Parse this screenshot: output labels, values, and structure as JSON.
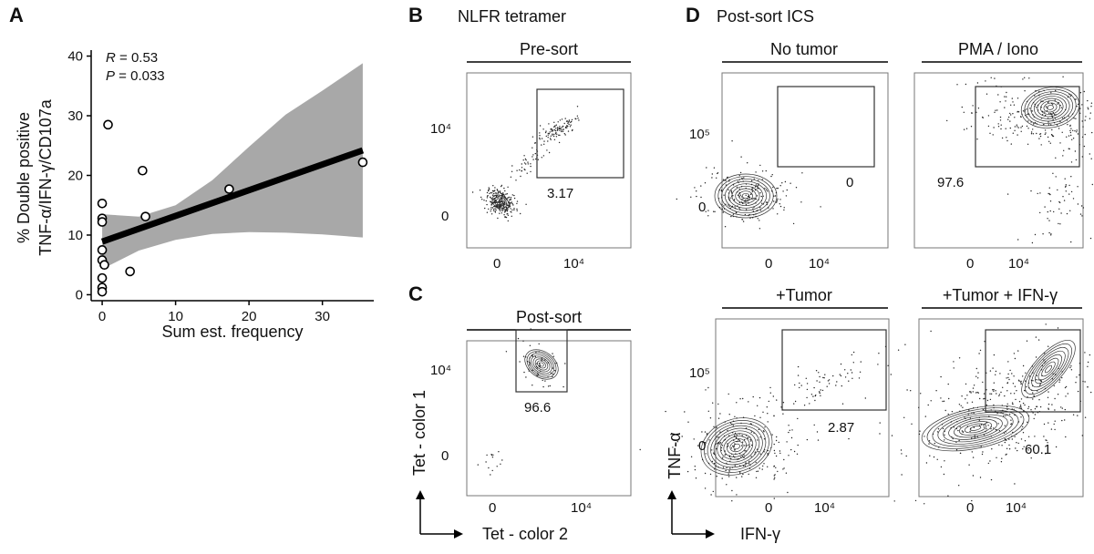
{
  "figure_labels": {
    "panels": [
      "A",
      "B",
      "C",
      "D"
    ],
    "b_title": "NLFR tetramer",
    "d_title": "Post-sort ICS",
    "c_arrows": {
      "x": "Tet - color 2",
      "y": "Tet - color 1"
    },
    "d_arrows": {
      "x": "IFN-γ",
      "y": "TNF-α"
    }
  },
  "chart_data": [
    {
      "id": "A",
      "type": "scatter",
      "title": "",
      "xlabel": "Sum est. frequency",
      "ylabel_line1": "% Double positive",
      "ylabel_line2": "TNF-α/IFN-γ/CD107a",
      "xlim": [
        -1.5,
        37
      ],
      "ylim": [
        -1,
        41
      ],
      "xticks": [
        0,
        10,
        20,
        30
      ],
      "yticks": [
        0,
        10,
        20,
        30,
        40
      ],
      "stats": {
        "r_label": "R",
        "r_value": " = 0.53",
        "p_label": "P",
        "p_value": " = 0.033"
      },
      "points": [
        {
          "x": 0,
          "y": 15.3
        },
        {
          "x": 0,
          "y": 12.8
        },
        {
          "x": 0,
          "y": 12.2
        },
        {
          "x": 0,
          "y": 7.5
        },
        {
          "x": 0,
          "y": 5.8
        },
        {
          "x": 0,
          "y": 2.8
        },
        {
          "x": 0,
          "y": 1.2
        },
        {
          "x": 0,
          "y": 0.5
        },
        {
          "x": 0.3,
          "y": 5.0
        },
        {
          "x": 0.8,
          "y": 28.5
        },
        {
          "x": 3.8,
          "y": 3.9
        },
        {
          "x": 5.5,
          "y": 20.8
        },
        {
          "x": 5.9,
          "y": 13.1
        },
        {
          "x": 17.3,
          "y": 17.7
        },
        {
          "x": 35.5,
          "y": 22.2
        }
      ],
      "fit": {
        "x": [
          0,
          35.5
        ],
        "y": [
          8.9,
          24.2
        ]
      },
      "band": {
        "x": [
          0,
          5,
          10,
          15,
          20,
          25,
          30,
          35.5
        ],
        "lower": [
          4.3,
          7.4,
          9.2,
          10.2,
          10.5,
          10.4,
          10.1,
          9.6
        ],
        "upper": [
          13.5,
          13.1,
          15.0,
          19.2,
          24.8,
          30.2,
          34.2,
          38.8
        ]
      },
      "colors": {
        "band": "#a8a8a8",
        "line": "#000000"
      }
    },
    {
      "id": "B",
      "type": "scatter",
      "subtitle": "Pre-sort",
      "xticks": [
        "0",
        "10⁴"
      ],
      "yticks": [
        "0",
        "10⁴"
      ],
      "gate_value": "3.17"
    },
    {
      "id": "C",
      "type": "scatter",
      "subtitle": "Post-sort",
      "xticks": [
        "0",
        "10⁴"
      ],
      "yticks": [
        "0",
        "10⁴"
      ],
      "gate_value": "96.6"
    },
    {
      "id": "D1",
      "type": "scatter",
      "subtitle": "No tumor",
      "xticks": [
        "0",
        "10⁴"
      ],
      "yticks": [
        "0",
        "10⁵"
      ],
      "gate_value": "0"
    },
    {
      "id": "D2",
      "type": "scatter",
      "subtitle": "PMA / Iono",
      "xticks": [
        "0",
        "10⁴"
      ],
      "yticks": [],
      "gate_value": "97.6"
    },
    {
      "id": "D3",
      "type": "scatter",
      "subtitle": "+Tumor",
      "xticks": [
        "0",
        "10⁴"
      ],
      "yticks": [
        "0",
        "10⁵"
      ],
      "gate_value": "2.87"
    },
    {
      "id": "D4",
      "type": "scatter",
      "subtitle": "+Tumor + IFN-γ",
      "xticks": [
        "0",
        "10⁴"
      ],
      "yticks": [],
      "gate_value": "60.1"
    }
  ]
}
